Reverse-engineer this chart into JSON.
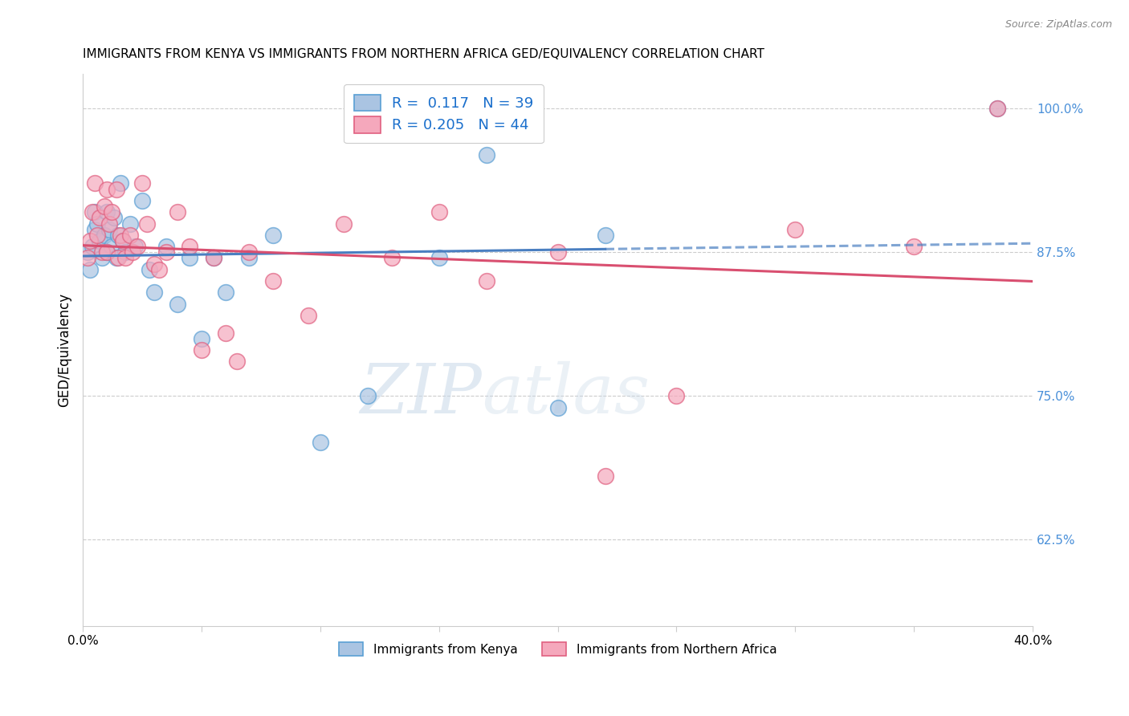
{
  "title": "IMMIGRANTS FROM KENYA VS IMMIGRANTS FROM NORTHERN AFRICA GED/EQUIVALENCY CORRELATION CHART",
  "source": "Source: ZipAtlas.com",
  "ylabel": "GED/Equivalency",
  "legend_kenya": "Immigrants from Kenya",
  "legend_north_africa": "Immigrants from Northern Africa",
  "r_kenya": 0.117,
  "n_kenya": 39,
  "r_north_africa": 0.205,
  "n_north_africa": 44,
  "color_kenya": "#aac4e2",
  "color_north_africa": "#f5a8bc",
  "color_kenya_edge": "#5a9fd4",
  "color_north_africa_edge": "#e06080",
  "color_trendline_kenya": "#4a7fc1",
  "color_trendline_north_africa": "#d94f70",
  "right_yticks": [
    62.5,
    75.0,
    87.5,
    100.0
  ],
  "xmin": 0.0,
  "xmax": 40.0,
  "ymin": 55.0,
  "ymax": 103.0,
  "kenya_x": [
    0.2,
    0.3,
    0.4,
    0.5,
    0.5,
    0.6,
    0.7,
    0.8,
    0.9,
    1.0,
    1.0,
    1.1,
    1.2,
    1.3,
    1.4,
    1.5,
    1.6,
    1.7,
    1.8,
    2.0,
    2.2,
    2.5,
    2.8,
    3.0,
    3.5,
    4.0,
    4.5,
    5.0,
    5.5,
    6.0,
    7.0,
    8.0,
    10.0,
    12.0,
    15.0,
    17.0,
    20.0,
    22.0,
    38.5
  ],
  "kenya_y": [
    87.5,
    86.0,
    88.0,
    89.5,
    91.0,
    90.0,
    88.5,
    87.0,
    89.0,
    91.0,
    87.5,
    89.5,
    88.0,
    90.5,
    87.0,
    89.0,
    93.5,
    88.5,
    87.5,
    90.0,
    88.0,
    92.0,
    86.0,
    84.0,
    88.0,
    83.0,
    87.0,
    80.0,
    87.0,
    84.0,
    87.0,
    89.0,
    71.0,
    75.0,
    87.0,
    96.0,
    74.0,
    89.0,
    100.0
  ],
  "north_africa_x": [
    0.2,
    0.3,
    0.4,
    0.5,
    0.6,
    0.7,
    0.8,
    0.9,
    1.0,
    1.0,
    1.1,
    1.2,
    1.4,
    1.5,
    1.6,
    1.7,
    1.8,
    2.0,
    2.1,
    2.3,
    2.5,
    2.7,
    3.0,
    3.2,
    3.5,
    4.0,
    4.5,
    5.0,
    5.5,
    6.0,
    6.5,
    7.0,
    8.0,
    9.5,
    11.0,
    13.0,
    15.0,
    17.0,
    20.0,
    22.0,
    25.0,
    30.0,
    35.0,
    38.5
  ],
  "north_africa_y": [
    87.0,
    88.5,
    91.0,
    93.5,
    89.0,
    90.5,
    87.5,
    91.5,
    93.0,
    87.5,
    90.0,
    91.0,
    93.0,
    87.0,
    89.0,
    88.5,
    87.0,
    89.0,
    87.5,
    88.0,
    93.5,
    90.0,
    86.5,
    86.0,
    87.5,
    91.0,
    88.0,
    79.0,
    87.0,
    80.5,
    78.0,
    87.5,
    85.0,
    82.0,
    90.0,
    87.0,
    91.0,
    85.0,
    87.5,
    68.0,
    75.0,
    89.5,
    88.0,
    100.0
  ],
  "kenya_max_x": 22.0,
  "watermark_zip": "ZIP",
  "watermark_atlas": "atlas",
  "background_color": "#ffffff",
  "grid_color": "#cccccc",
  "right_axis_color": "#4a90d9"
}
